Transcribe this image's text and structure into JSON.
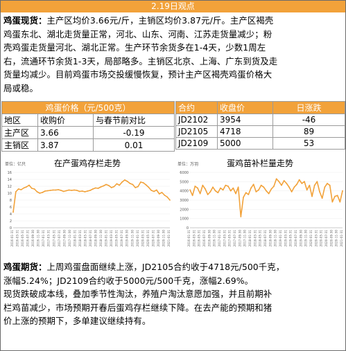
{
  "header": {
    "title": "2.19日观点"
  },
  "spot": {
    "label": "鸡蛋现货：",
    "line1": "主产区均价3.66元/斤，主销区均价3.87元/斤。主产区褐壳",
    "line2": "鸡蛋东北、湖北走货量正常，河北、山东、河南、江苏走货量减少；粉",
    "line3": "壳鸡蛋走货量河北、湖北正常。生产环节余货多在1-4天，少数1周左",
    "line4": "右，流通环节余货1-3天，局部略多。主销区北京、上海、广东到货及走",
    "line5": "货量均减少。目前鸡蛋市场交投缓慢恢复，预计主产区褐壳鸡蛋价格大",
    "line6": "局或稳。"
  },
  "price_table": {
    "title": "鸡蛋价格（元/500克）",
    "headers": [
      "地区",
      "收购价",
      "与春节前对比"
    ],
    "rows": [
      [
        "主产区",
        "3.66",
        "-0.19"
      ],
      [
        "主销区",
        "3.87",
        "0.01"
      ]
    ]
  },
  "contract_table": {
    "headers": [
      "合约",
      "收盘价",
      "日涨跌"
    ],
    "rows": [
      [
        "JD2102",
        "3954",
        "-46"
      ],
      [
        "JD2105",
        "4718",
        "89"
      ],
      [
        "JD2109",
        "5000",
        "53"
      ]
    ]
  },
  "chart_data": [
    {
      "type": "line",
      "title": "在产蛋鸡存栏走势",
      "unit": "单位：亿只",
      "ylim": [
        0,
        16
      ],
      "yticks": [
        "0",
        "2",
        "4",
        "6",
        "8",
        "10",
        "12",
        "14",
        "16"
      ],
      "xticks": [
        "2016-01-31",
        "2016-03-31",
        "2016-05-31",
        "2016-07-31",
        "2016-09-30",
        "2016-11-30",
        "2017-01-31",
        "2017-03-31",
        "2017-05-31",
        "2017-07-31",
        "2017-09-30",
        "2017-11-30",
        "2018-01-31",
        "2018-03-31",
        "2018-05-31",
        "2018-07-31",
        "2018-09-30",
        "2018-11-30",
        "2019-01-31",
        "2019-03-31",
        "2019-05-31",
        "2019-07-31",
        "2019-09-30",
        "2019-11-30",
        "2020-01-31",
        "2020-03-31",
        "2020-05-31",
        "2020-07-31",
        "2020-09-30",
        "2020-11-30",
        "2021-01-31"
      ],
      "color": "#f2a23a",
      "values": [
        4.5,
        10.4,
        11.2,
        11.0,
        11.5,
        11.8,
        12.3,
        11.4,
        11.2,
        10.4,
        10.0,
        10.2,
        10.6,
        10.7,
        10.8,
        10.9,
        10.9,
        11.0,
        10.8,
        10.5,
        10.7,
        10.9,
        10.8,
        10.9,
        10.8,
        10.5,
        10.6,
        10.4,
        10.6,
        10.8,
        11.2,
        11.5,
        11.4,
        11.8,
        12.1,
        12.5,
        12.2,
        11.6,
        11.9,
        12.7,
        12.3,
        13.2,
        13.8,
        13.4,
        12.8,
        12.5,
        11.6,
        11.9,
        13.2,
        13.0,
        12.4,
        11.7,
        10.8,
        10.5,
        10.9,
        9.8,
        10.2,
        9.4,
        8.9,
        8.0
      ]
    },
    {
      "type": "line",
      "title": "蛋鸡苗补栏量走势",
      "unit": "单位：万羽",
      "ylim": [
        0,
        6000
      ],
      "yticks": [
        "0",
        "1000",
        "2000",
        "3000",
        "4000",
        "5000",
        "6000"
      ],
      "xticks": [
        "2016-01-31",
        "2016-03-31",
        "2016-05-31",
        "2016-07-31",
        "2016-09-30",
        "2016-11-30",
        "2017-01-31",
        "2017-03-31",
        "2017-05-31",
        "2017-07-31",
        "2017-09-30",
        "2017-11-30",
        "2018-01-31",
        "2018-03-31",
        "2018-05-31",
        "2018-07-31",
        "2018-09-30",
        "2018-11-30",
        "2019-01-31",
        "2019-03-31",
        "2019-05-31",
        "2019-07-31",
        "2019-09-30",
        "2019-11-30",
        "2020-01-31",
        "2020-03-31",
        "2020-05-31",
        "2020-07-31",
        "2020-09-30",
        "2020-11-30",
        "2021-01-31"
      ],
      "color": "#f2a23a",
      "values": [
        4100,
        3500,
        4500,
        4300,
        3700,
        4600,
        4200,
        3600,
        3900,
        4400,
        4000,
        3800,
        4300,
        4100,
        4600,
        4500,
        4000,
        4300,
        3700,
        4400,
        1200,
        3300,
        3800,
        3600,
        4300,
        4700,
        3900,
        4100,
        4600,
        4400,
        4000,
        3700,
        4200,
        4500,
        5300,
        5000,
        4600,
        5100,
        4800,
        4400,
        3900,
        4400,
        4700,
        5200,
        4800,
        5000,
        4100,
        4600,
        3400,
        4600,
        5000,
        3900,
        3200,
        4400,
        4800,
        4600,
        2800,
        3400,
        3500,
        2800,
        4000
      ]
    }
  ],
  "futures": {
    "label": "鸡蛋期货：",
    "line1": "上周鸡蛋盘面继续上涨，JD2105合约收于4718元/500千克，",
    "line2": "涨幅5.24%；JD2109合约收于5000元/500千克，涨幅2.69%。",
    "line3": "现货跌破成本线，叠加季节性淘汰，养殖户淘汰意愿加强，并且前期补",
    "line4": "栏鸡苗减少，市场预期开春后蛋鸡存栏继续下降。在去产能的预期和猪",
    "line5": "价上涨的预期下，多单建议继续持有。"
  }
}
